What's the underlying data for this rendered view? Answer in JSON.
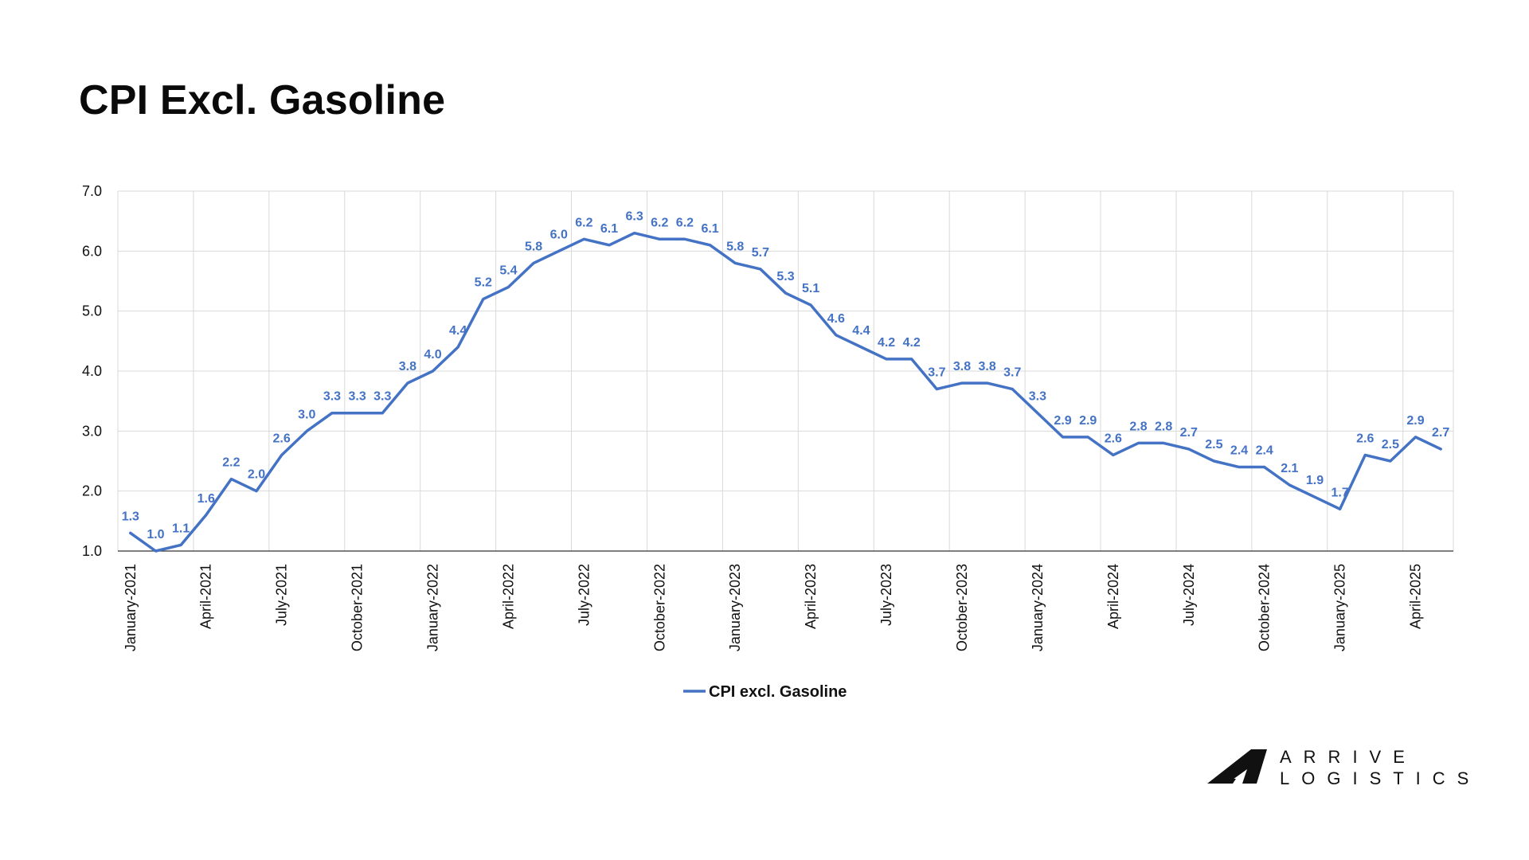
{
  "title": "CPI Excl. Gasoline",
  "colors": {
    "series": "#4472C4",
    "grid": "#d9d9d9",
    "axis": "#333333"
  },
  "logo": {
    "line1": "ARRIVE",
    "line2": "LOGISTICS"
  },
  "chart_data": {
    "type": "line",
    "title": "",
    "xlabel": "",
    "ylabel": "",
    "ylim": [
      1.0,
      7.0
    ],
    "yticks": [
      "1.0",
      "2.0",
      "3.0",
      "4.0",
      "5.0",
      "6.0",
      "7.0"
    ],
    "grid": true,
    "legend_position": "bottom",
    "x": [
      "January-2021",
      "February-2021",
      "March-2021",
      "April-2021",
      "May-2021",
      "June-2021",
      "July-2021",
      "August-2021",
      "September-2021",
      "October-2021",
      "November-2021",
      "December-2021",
      "January-2022",
      "February-2022",
      "March-2022",
      "April-2022",
      "May-2022",
      "June-2022",
      "July-2022",
      "August-2022",
      "September-2022",
      "October-2022",
      "November-2022",
      "December-2022",
      "January-2023",
      "February-2023",
      "March-2023",
      "April-2023",
      "May-2023",
      "June-2023",
      "July-2023",
      "August-2023",
      "September-2023",
      "October-2023",
      "November-2023",
      "December-2023",
      "January-2024",
      "February-2024",
      "March-2024",
      "April-2024",
      "May-2024",
      "June-2024",
      "July-2024",
      "August-2024",
      "September-2024",
      "October-2024",
      "November-2024",
      "December-2024",
      "January-2025",
      "February-2025",
      "March-2025",
      "April-2025",
      "May-2025"
    ],
    "x_tick_labels": [
      {
        "index": 0,
        "label": "January-2021"
      },
      {
        "index": 3,
        "label": "April-2021"
      },
      {
        "index": 6,
        "label": "July-2021"
      },
      {
        "index": 9,
        "label": "October-2021"
      },
      {
        "index": 12,
        "label": "January-2022"
      },
      {
        "index": 15,
        "label": "April-2022"
      },
      {
        "index": 18,
        "label": "July-2022"
      },
      {
        "index": 21,
        "label": "October-2022"
      },
      {
        "index": 24,
        "label": "January-2023"
      },
      {
        "index": 27,
        "label": "April-2023"
      },
      {
        "index": 30,
        "label": "July-2023"
      },
      {
        "index": 33,
        "label": "October-2023"
      },
      {
        "index": 36,
        "label": "January-2024"
      },
      {
        "index": 39,
        "label": "April-2024"
      },
      {
        "index": 42,
        "label": "July-2024"
      },
      {
        "index": 45,
        "label": "October-2024"
      },
      {
        "index": 48,
        "label": "January-2025"
      },
      {
        "index": 51,
        "label": "April-2025"
      }
    ],
    "series": [
      {
        "name": "CPI excl. Gasoline",
        "values": [
          1.3,
          1.0,
          1.1,
          1.6,
          2.2,
          2.0,
          2.6,
          3.0,
          3.3,
          3.3,
          3.3,
          3.8,
          4.0,
          4.4,
          5.2,
          5.4,
          5.8,
          6.0,
          6.2,
          6.1,
          6.3,
          6.2,
          6.2,
          6.1,
          5.8,
          5.7,
          5.3,
          5.1,
          4.6,
          4.4,
          4.2,
          4.2,
          3.7,
          3.8,
          3.8,
          3.7,
          3.3,
          2.9,
          2.9,
          2.6,
          2.8,
          2.8,
          2.7,
          2.5,
          2.4,
          2.4,
          2.1,
          1.9,
          1.7,
          2.6,
          2.5,
          2.9,
          2.7
        ]
      }
    ]
  }
}
